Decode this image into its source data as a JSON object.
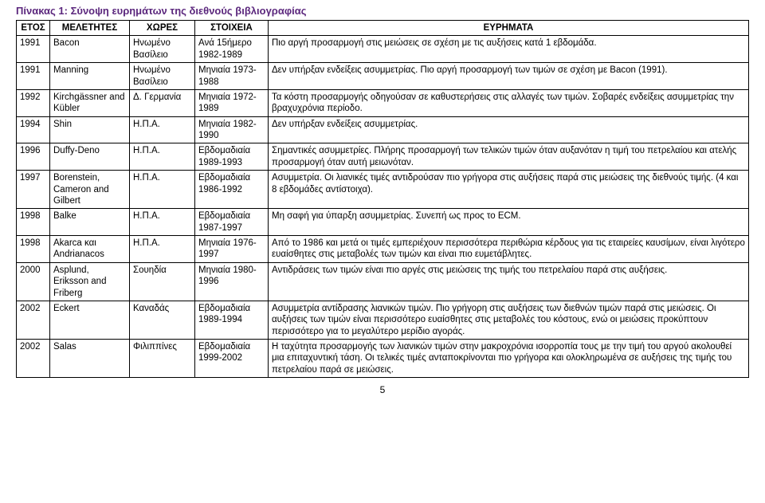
{
  "title": "Πίνακας 1: Σύνοψη ευρημάτων της διεθνούς βιβλιογραφίας",
  "headers": {
    "year": "ΕΤΟΣ",
    "authors": "ΜΕΛΕΤΗΤΕΣ",
    "countries": "ΧΩΡΕΣ",
    "data": "ΣΤΟΙΧΕΙΑ",
    "findings": "ΕΥΡΗΜΑΤΑ"
  },
  "rows": [
    {
      "year": "1991",
      "authors": "Bacon",
      "countries": "Ηνωμένο Βασίλειο",
      "data": "Ανά 15ήμερο 1982-1989",
      "findings": "Πιο αργή προσαρμογή στις μειώσεις σε σχέση με τις αυξήσεις κατά 1 εβδομάδα."
    },
    {
      "year": "1991",
      "authors": "Manning",
      "countries": "Ηνωμένο Βασίλειο",
      "data": "Μηνιαία 1973-1988",
      "findings": "Δεν υπήρξαν ενδείξεις ασυμμετρίας. Πιο αργή προσαρμογή των τιμών σε σχέση με Bacon (1991)."
    },
    {
      "year": "1992",
      "authors": "Kirchgässner and Kübler",
      "countries": "Δ. Γερμανία",
      "data": "Μηνιαία 1972-1989",
      "findings": "Τα κόστη προσαρμογής οδηγούσαν σε καθυστερήσεις στις αλλαγές των τιμών. Σοβαρές ενδείξεις ασυμμετρίας την βραχυχρόνια περίοδο."
    },
    {
      "year": "1994",
      "authors": "Shin",
      "countries": "Η.Π.Α.",
      "data": "Μηνιαία 1982-1990",
      "findings": "Δεν υπήρξαν ενδείξεις ασυμμετρίας."
    },
    {
      "year": "1996",
      "authors": "Duffy-Deno",
      "countries": "Η.Π.Α.",
      "data": "Εβδομαδιαία 1989-1993",
      "findings": "Σημαντικές ασυμμετρίες. Πλήρης προσαρμογή των τελικών τιμών όταν αυξανόταν η τιμή του πετρελαίου και ατελής προσαρμογή όταν αυτή μειωνόταν."
    },
    {
      "year": "1997",
      "authors": "Borenstein, Cameron and Gilbert",
      "countries": "Η.Π.Α.",
      "data": "Εβδομαδιαία 1986-1992",
      "findings": "Ασυμμετρία. Οι λιανικές τιμές αντιδρούσαν πιο γρήγορα στις αυξήσεις παρά στις μειώσεις της διεθνούς τιμής. (4 και 8 εβδομάδες αντίστοιχα)."
    },
    {
      "year": "1998",
      "authors": "Balke",
      "countries": "Η.Π.Α.",
      "data": "Εβδομαδιαία 1987-1997",
      "findings": "Μη σαφή για ύπαρξη ασυμμετρίας. Συνεπή ως προς το ECM."
    },
    {
      "year": "1998",
      "authors": "Akarca και Andrianacos",
      "countries": "Η.Π.Α.",
      "data": "Μηνιαία 1976-1997",
      "findings": "Από το 1986 και μετά οι τιμές εμπεριέχουν περισσότερα περιθώρια κέρδους για τις εταιρείες καυσίμων, είναι λιγότερο ευαίσθητες στις μεταβολές των τιμών και είναι πιο ευμετάβλητες."
    },
    {
      "year": "2000",
      "authors": "Asplund, Eriksson and Friberg",
      "countries": "Σουηδία",
      "data": "Μηνιαία 1980-1996",
      "findings": "Αντιδράσεις των τιμών είναι πιο αργές στις μειώσεις της τιμής του πετρελαίου παρά στις αυξήσεις."
    },
    {
      "year": "2002",
      "authors": "Eckert",
      "countries": "Καναδάς",
      "data": "Εβδομαδιαία 1989-1994",
      "findings": "Ασυμμετρία αντίδρασης λιανικών τιμών. Πιο γρήγορη στις αυξήσεις των διεθνών τιμών παρά στις μειώσεις. Οι αυξήσεις των τιμών είναι περισσότερο ευαίσθητες στις μεταβολές του κόστους, ενώ οι μειώσεις προκύπτουν περισσότερο για το μεγαλύτερο μερίδιο αγοράς."
    },
    {
      "year": "2002",
      "authors": "Salas",
      "countries": "Φιλιππίνες",
      "data": "Εβδομαδιαία 1999-2002",
      "findings": "Η ταχύτητα προσαρμογής των λιανικών τιμών στην μακροχρόνια ισορροπία τους με την τιμή του αργού ακολουθεί μια επιταχυντική τάση. Οι τελικές τιμές ανταποκρίνονται πιο γρήγορα και ολοκληρωμένα σε αυξήσεις της τιμής του πετρελαίου παρά σε μειώσεις."
    }
  ],
  "page_number": "5"
}
